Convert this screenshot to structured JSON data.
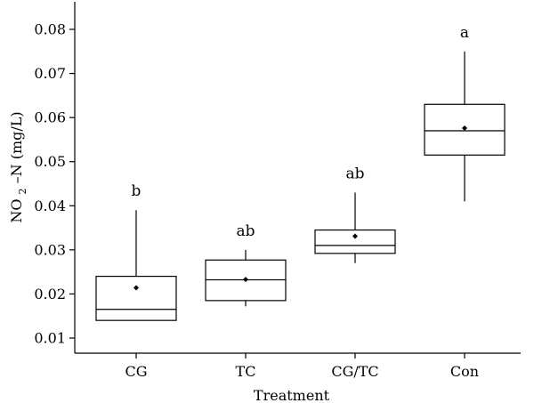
{
  "chart_data": {
    "type": "box",
    "xlabel": "Treatment",
    "ylabel_main": "NO",
    "ylabel_sub": "2",
    "ylabel_rest": "–N (mg/L)",
    "ylim": [
      0.009,
      0.086
    ],
    "yticks": [
      "0.01",
      "0.02",
      "0.03",
      "0.04",
      "0.05",
      "0.06",
      "0.07",
      "0.08"
    ],
    "ytick_values": [
      0.01,
      0.02,
      0.03,
      0.04,
      0.05,
      0.06,
      0.07,
      0.08
    ],
    "categories": [
      "CG",
      "TC",
      "CG/TC",
      "Con"
    ],
    "boxes": [
      {
        "category": "CG",
        "whisker_low": 0.014,
        "q1": 0.014,
        "median": 0.0165,
        "q3": 0.024,
        "whisker_high": 0.039,
        "mean": 0.0214,
        "significance": "b"
      },
      {
        "category": "TC",
        "whisker_low": 0.0172,
        "q1": 0.0185,
        "median": 0.0232,
        "q3": 0.0277,
        "whisker_high": 0.03,
        "mean": 0.0233,
        "significance": "ab"
      },
      {
        "category": "CG/TC",
        "whisker_low": 0.027,
        "q1": 0.0292,
        "median": 0.031,
        "q3": 0.0345,
        "whisker_high": 0.043,
        "mean": 0.0331,
        "significance": "ab"
      },
      {
        "category": "Con",
        "whisker_low": 0.041,
        "q1": 0.0515,
        "median": 0.057,
        "q3": 0.063,
        "whisker_high": 0.075,
        "mean": 0.0576,
        "significance": "a"
      }
    ]
  }
}
